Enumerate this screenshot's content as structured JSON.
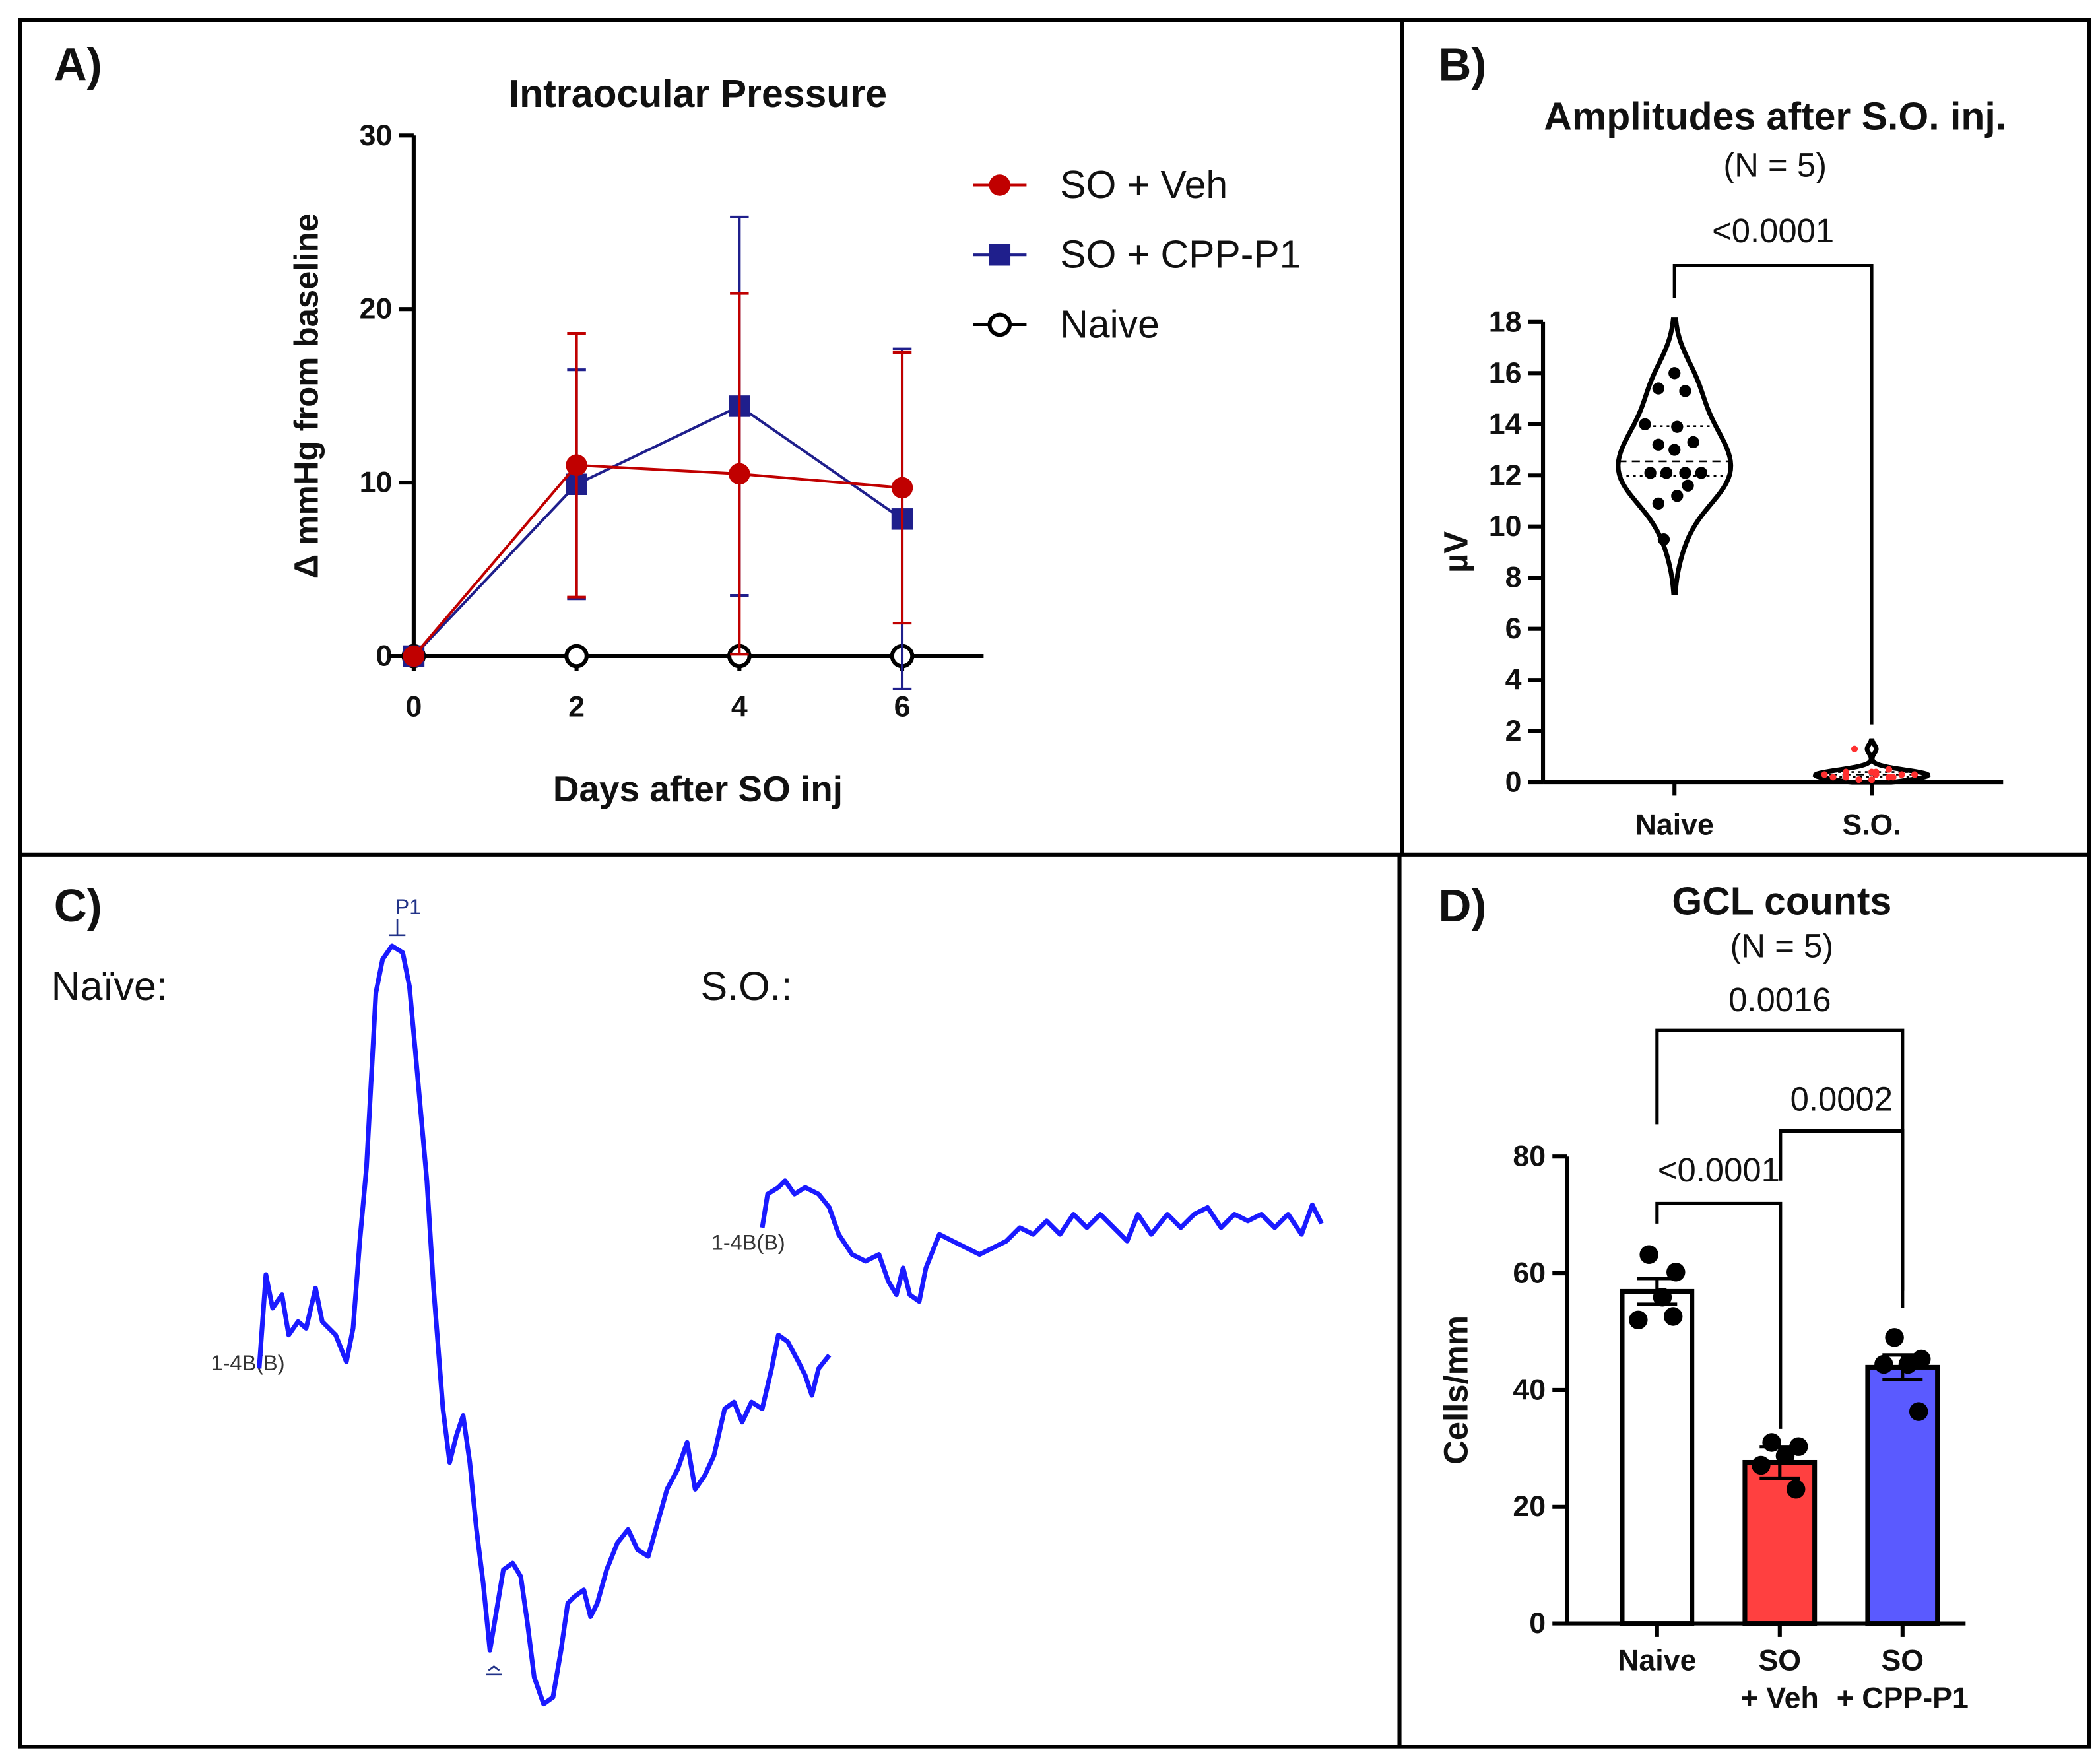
{
  "chart_data": [
    {
      "type": "line",
      "panel_label": "A)",
      "title": "Intraocular Pressure",
      "x_label": "Days after SO inj",
      "y_label": "Δ mmHg from baseline",
      "x": [
        0,
        2,
        4,
        6
      ],
      "xlim": [
        -0.3,
        7
      ],
      "xticks": [
        0,
        2,
        4,
        6
      ],
      "ylim": [
        0,
        30
      ],
      "yticks": [
        0,
        10,
        20,
        30
      ],
      "legend": "upper right",
      "series": [
        {
          "name": "SO + Veh",
          "color": "#c00000",
          "marker": "circle",
          "values": [
            0,
            11,
            10.5,
            9.7
          ],
          "errors": [
            0,
            7.6,
            10.4,
            7.8
          ]
        },
        {
          "name": "SO + CPP-P1",
          "color": "#1f1f8c",
          "marker": "square",
          "values": [
            0,
            9.9,
            14.4,
            7.9
          ],
          "errors": [
            0,
            6.6,
            10.9,
            9.8
          ]
        },
        {
          "name": "Naive",
          "color": "#000000",
          "marker": "open-circle",
          "values": [
            0,
            0,
            0,
            0
          ]
        }
      ]
    },
    {
      "type": "violin",
      "panel_label": "B)",
      "title": "Amplitudes after S.O. inj.",
      "subtitle": "(N = 5)",
      "y_label": "µV",
      "categories": [
        "Naive",
        "S.O."
      ],
      "values": [
        [
          16.0,
          15.4,
          15.3,
          14.0,
          13.9,
          13.3,
          13.2,
          13.0,
          12.1,
          12.1,
          12.1,
          12.1,
          11.6,
          11.2,
          10.9,
          9.5
        ],
        [
          0.1,
          0.2,
          0.2,
          0.3,
          0.3,
          0.3,
          0.4,
          0.4,
          0.2,
          0.1,
          0.5,
          0.3,
          0.2,
          0.4,
          0.3,
          1.3
        ]
      ],
      "point_colors": [
        "#000000",
        "#ff3030"
      ],
      "ylim": [
        0,
        18
      ],
      "yticks": [
        0,
        2,
        4,
        6,
        8,
        10,
        12,
        14,
        16,
        18
      ],
      "comparisons": [
        "<0.0001"
      ]
    },
    {
      "type": "bar",
      "panel_label": "D)",
      "title": "GCL counts",
      "subtitle": "(N = 5)",
      "y_label": "Cells/mm",
      "categories": [
        "Naive",
        "SO\n+ Veh",
        "SO\n+ CPP-P1"
      ],
      "values": [
        56.9,
        27.6,
        43.9
      ],
      "errors": [
        2.2,
        2.7,
        2.1
      ],
      "points": [
        [
          63.2,
          60.2,
          55.9,
          52.0,
          52.6
        ],
        [
          31.0,
          30.3,
          28.7,
          27.1,
          23.0
        ],
        [
          49.0,
          45.3,
          44.4,
          44.4,
          36.3
        ]
      ],
      "colors": [
        "#ffffff",
        "#ff4040",
        "#5a5aff"
      ],
      "ylim": [
        0,
        80
      ],
      "yticks": [
        0,
        20,
        40,
        60,
        80
      ],
      "comparisons": [
        "0.0016",
        "0.0002",
        "<0.0001"
      ]
    }
  ],
  "panel_c": {
    "panel_label": "C)",
    "naive_label": "Naïve:",
    "so_label": "S.O.:",
    "peak_label": "P1",
    "trace_labels": [
      "1-4B(B)",
      "1-4B(B)"
    ]
  }
}
